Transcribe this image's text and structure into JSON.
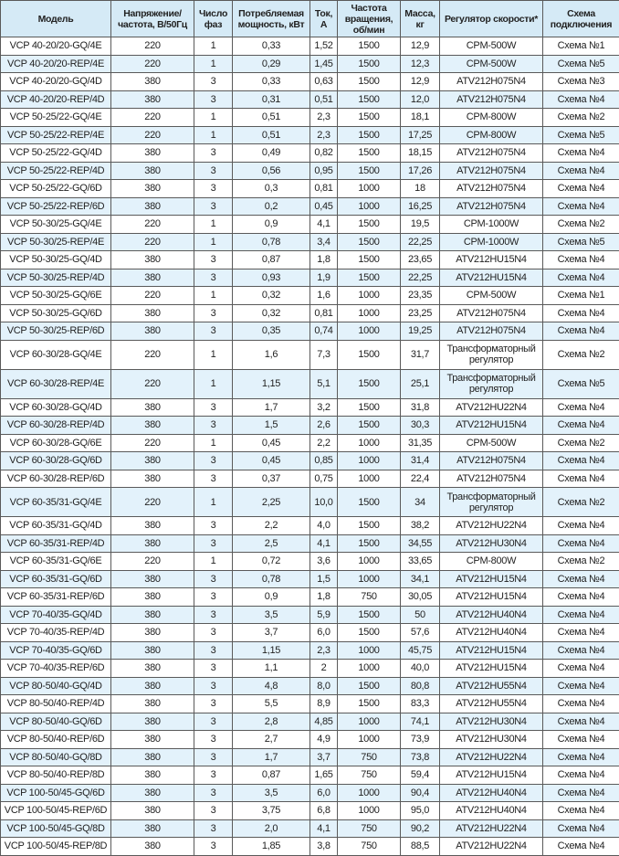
{
  "table": {
    "headers": [
      "Модель",
      "Напряжение/ частота, В/50Гц",
      "Число фаз",
      "Потребляемая мощность, кВт",
      "Ток, А",
      "Частота вращения, об/мин",
      "Масса, кг",
      "Регулятор скорости*",
      "Схема подключения"
    ],
    "rows": [
      [
        "VCP 40-20/20-GQ/4E",
        "220",
        "1",
        "0,33",
        "1,52",
        "1500",
        "12,9",
        "CPM-500W",
        "Схема №1"
      ],
      [
        "VCP 40-20/20-REP/4E",
        "220",
        "1",
        "0,29",
        "1,45",
        "1500",
        "12,3",
        "CPM-500W",
        "Схема №5"
      ],
      [
        "VCP 40-20/20-GQ/4D",
        "380",
        "3",
        "0,33",
        "0,63",
        "1500",
        "12,9",
        "ATV212H075N4",
        "Схема №3"
      ],
      [
        "VCP 40-20/20-REP/4D",
        "380",
        "3",
        "0,31",
        "0,51",
        "1500",
        "12,0",
        "ATV212H075N4",
        "Схема №4"
      ],
      [
        "VCP 50-25/22-GQ/4E",
        "220",
        "1",
        "0,51",
        "2,3",
        "1500",
        "18,1",
        "CPM-800W",
        "Схема №2"
      ],
      [
        "VCP 50-25/22-REP/4E",
        "220",
        "1",
        "0,51",
        "2,3",
        "1500",
        "17,25",
        "CPM-800W",
        "Схема №5"
      ],
      [
        "VCP 50-25/22-GQ/4D",
        "380",
        "3",
        "0,49",
        "0,82",
        "1500",
        "18,15",
        "ATV212H075N4",
        "Схема №4"
      ],
      [
        "VCP 50-25/22-REP/4D",
        "380",
        "3",
        "0,56",
        "0,95",
        "1500",
        "17,26",
        "ATV212H075N4",
        "Схема №4"
      ],
      [
        "VCP 50-25/22-GQ/6D",
        "380",
        "3",
        "0,3",
        "0,81",
        "1000",
        "18",
        "ATV212H075N4",
        "Схема №4"
      ],
      [
        "VCP 50-25/22-REP/6D",
        "380",
        "3",
        "0,2",
        "0,45",
        "1000",
        "16,25",
        "ATV212H075N4",
        "Схема №4"
      ],
      [
        "VCP 50-30/25-GQ/4E",
        "220",
        "1",
        "0,9",
        "4,1",
        "1500",
        "19,5",
        "CPM-1000W",
        "Схема №2"
      ],
      [
        "VCP 50-30/25-REP/4E",
        "220",
        "1",
        "0,78",
        "3,4",
        "1500",
        "22,25",
        "CPM-1000W",
        "Схема №5"
      ],
      [
        "VCP 50-30/25-GQ/4D",
        "380",
        "3",
        "0,87",
        "1,8",
        "1500",
        "23,65",
        "ATV212HU15N4",
        "Схема №4"
      ],
      [
        "VCP 50-30/25-REP/4D",
        "380",
        "3",
        "0,93",
        "1,9",
        "1500",
        "22,25",
        "ATV212HU15N4",
        "Схема №4"
      ],
      [
        "VCP 50-30/25-GQ/6E",
        "220",
        "1",
        "0,32",
        "1,6",
        "1000",
        "23,35",
        "CPM-500W",
        "Схема №1"
      ],
      [
        "VCP 50-30/25-GQ/6D",
        "380",
        "3",
        "0,32",
        "0,81",
        "1000",
        "23,25",
        "ATV212H075N4",
        "Схема №4"
      ],
      [
        "VCP 50-30/25-REP/6D",
        "380",
        "3",
        "0,35",
        "0,74",
        "1000",
        "19,25",
        "ATV212H075N4",
        "Схема №4"
      ],
      [
        "VCP 60-30/28-GQ/4E",
        "220",
        "1",
        "1,6",
        "7,3",
        "1500",
        "31,7",
        "Трансформаторный регулятор",
        "Схема №2"
      ],
      [
        "VCP 60-30/28-REP/4E",
        "220",
        "1",
        "1,15",
        "5,1",
        "1500",
        "25,1",
        "Трансформаторный регулятор",
        "Схема №5"
      ],
      [
        "VCP 60-30/28-GQ/4D",
        "380",
        "3",
        "1,7",
        "3,2",
        "1500",
        "31,8",
        "ATV212HU22N4",
        "Схема №4"
      ],
      [
        "VCP 60-30/28-REP/4D",
        "380",
        "3",
        "1,5",
        "2,6",
        "1500",
        "30,3",
        "ATV212HU15N4",
        "Схема №4"
      ],
      [
        "VCP 60-30/28-GQ/6E",
        "220",
        "1",
        "0,45",
        "2,2",
        "1000",
        "31,35",
        "CPM-500W",
        "Схема №2"
      ],
      [
        "VCP 60-30/28-GQ/6D",
        "380",
        "3",
        "0,45",
        "0,85",
        "1000",
        "31,4",
        "ATV212H075N4",
        "Схема №4"
      ],
      [
        "VCP 60-30/28-REP/6D",
        "380",
        "3",
        "0,37",
        "0,75",
        "1000",
        "22,4",
        "ATV212H075N4",
        "Схема №4"
      ],
      [
        "VCP 60-35/31-GQ/4E",
        "220",
        "1",
        "2,25",
        "10,0",
        "1500",
        "34",
        "Трансформаторный регулятор",
        "Схема №2"
      ],
      [
        "VCP 60-35/31-GQ/4D",
        "380",
        "3",
        "2,2",
        "4,0",
        "1500",
        "38,2",
        "ATV212HU22N4",
        "Схема №4"
      ],
      [
        "VCP 60-35/31-REP/4D",
        "380",
        "3",
        "2,5",
        "4,1",
        "1500",
        "34,55",
        "ATV212HU30N4",
        "Схема №4"
      ],
      [
        "VCP 60-35/31-GQ/6E",
        "220",
        "1",
        "0,72",
        "3,6",
        "1000",
        "33,65",
        "CPM-800W",
        "Схема №2"
      ],
      [
        "VCP 60-35/31-GQ/6D",
        "380",
        "3",
        "0,78",
        "1,5",
        "1000",
        "34,1",
        "ATV212HU15N4",
        "Схема №4"
      ],
      [
        "VCP 60-35/31-REP/6D",
        "380",
        "3",
        "0,9",
        "1,8",
        "750",
        "30,05",
        "ATV212HU15N4",
        "Схема №4"
      ],
      [
        "VCP 70-40/35-GQ/4D",
        "380",
        "3",
        "3,5",
        "5,9",
        "1500",
        "50",
        "ATV212HU40N4",
        "Схема №4"
      ],
      [
        "VCP 70-40/35-REP/4D",
        "380",
        "3",
        "3,7",
        "6,0",
        "1500",
        "57,6",
        "ATV212HU40N4",
        "Схема №4"
      ],
      [
        "VCP 70-40/35-GQ/6D",
        "380",
        "3",
        "1,15",
        "2,3",
        "1000",
        "45,75",
        "ATV212HU15N4",
        "Схема №4"
      ],
      [
        "VCP 70-40/35-REP/6D",
        "380",
        "3",
        "1,1",
        "2",
        "1000",
        "40,0",
        "ATV212HU15N4",
        "Схема №4"
      ],
      [
        "VCP 80-50/40-GQ/4D",
        "380",
        "3",
        "4,8",
        "8,0",
        "1500",
        "80,8",
        "ATV212HU55N4",
        "Схема №4"
      ],
      [
        "VCP 80-50/40-REP/4D",
        "380",
        "3",
        "5,5",
        "8,9",
        "1500",
        "83,3",
        "ATV212HU55N4",
        "Схема №4"
      ],
      [
        "VCP 80-50/40-GQ/6D",
        "380",
        "3",
        "2,8",
        "4,85",
        "1000",
        "74,1",
        "ATV212HU30N4",
        "Схема №4"
      ],
      [
        "VCP 80-50/40-REP/6D",
        "380",
        "3",
        "2,7",
        "4,9",
        "1000",
        "73,9",
        "ATV212HU30N4",
        "Схема №4"
      ],
      [
        "VCP 80-50/40-GQ/8D",
        "380",
        "3",
        "1,7",
        "3,7",
        "750",
        "73,8",
        "ATV212HU22N4",
        "Схема №4"
      ],
      [
        "VCP 80-50/40-REP/8D",
        "380",
        "3",
        "0,87",
        "1,65",
        "750",
        "59,4",
        "ATV212HU15N4",
        "Схема №4"
      ],
      [
        "VCP 100-50/45-GQ/6D",
        "380",
        "3",
        "3,5",
        "6,0",
        "1000",
        "90,4",
        "ATV212HU40N4",
        "Схема №4"
      ],
      [
        "VCP 100-50/45-REP/6D",
        "380",
        "3",
        "3,75",
        "6,8",
        "1000",
        "95,0",
        "ATV212HU40N4",
        "Схема №4"
      ],
      [
        "VCP 100-50/45-GQ/8D",
        "380",
        "3",
        "2,0",
        "4,1",
        "750",
        "90,2",
        "ATV212HU22N4",
        "Схема №4"
      ],
      [
        "VCP 100-50/45-REP/8D",
        "380",
        "3",
        "1,85",
        "3,8",
        "750",
        "88,5",
        "ATV212HU22N4",
        "Схема №4"
      ]
    ]
  },
  "colors": {
    "header_bg": "#d5eaf6",
    "shaded_row": "#e3f2fb",
    "border": "#5a5a5a"
  }
}
